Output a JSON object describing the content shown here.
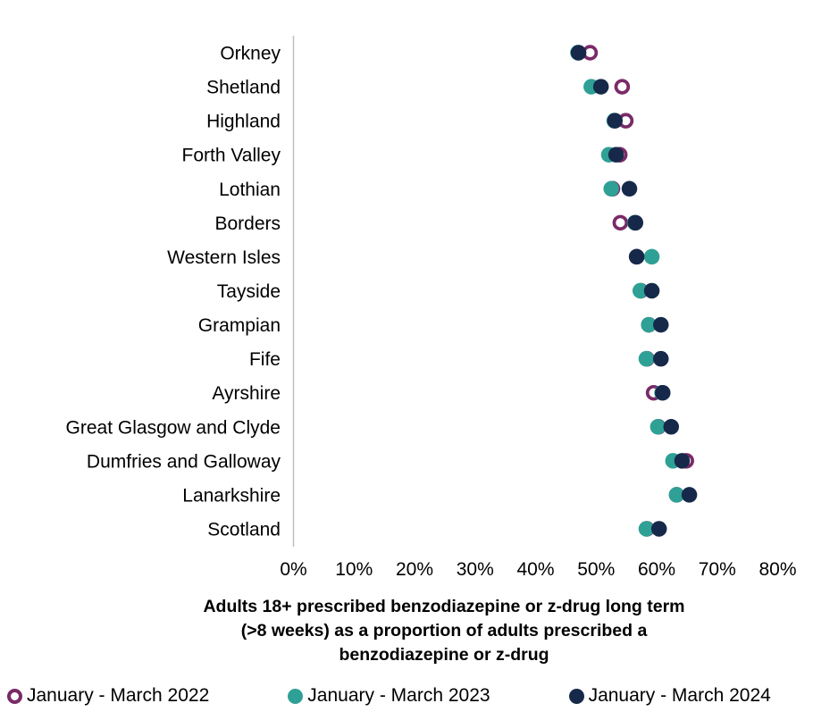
{
  "chart_data": {
    "type": "scatter",
    "subtype": "dot-plot",
    "orientation": "horizontal-categories",
    "title": "Adults 18+ prescribed benzodiazepine or z-drug long term (>8 weeks) as a proportion of adults prescribed a benzodiazepine or z-drug",
    "title_lines": [
      "Adults 18+ prescribed benzodiazepine or z-drug long term",
      "(>8 weeks) as a proportion of adults prescribed a",
      "benzodiazepine or z-drug"
    ],
    "categories": [
      "Orkney",
      "Shetland",
      "Highland",
      "Forth Valley",
      "Lothian",
      "Borders",
      "Western Isles",
      "Tayside",
      "Grampian",
      "Fife",
      "Ayrshire",
      "Great Glasgow and Clyde",
      "Dumfries and Galloway",
      "Lanarkshire",
      "Scotland"
    ],
    "x_ticks": [
      "0%",
      "10%",
      "20%",
      "30%",
      "40%",
      "50%",
      "60%",
      "70%",
      "80%"
    ],
    "xlim": [
      0,
      80
    ],
    "unit": "%",
    "grid": false,
    "legend_position": "bottom",
    "axis_line_color": "#bfbfbf",
    "text_color": "#000000",
    "series": [
      {
        "name": "January - March 2022",
        "marker": "open",
        "color": "#7a2a68",
        "values": [
          49.0,
          54.3,
          54.9,
          53.9,
          52.7,
          54.0,
          56.7,
          57.4,
          58.7,
          58.4,
          59.5,
          60.3,
          64.9,
          63.3,
          58.4
        ]
      },
      {
        "name": "January - March 2023",
        "marker": "filled",
        "color": "#2fa095",
        "values": [
          47.0,
          49.2,
          53.0,
          52.1,
          52.5,
          56.4,
          59.2,
          57.3,
          58.7,
          58.3,
          60.9,
          60.2,
          62.7,
          63.3,
          58.3
        ]
      },
      {
        "name": "January - March 2024",
        "marker": "filled",
        "color": "#16294a",
        "values": [
          47.1,
          50.8,
          53.1,
          53.3,
          55.5,
          56.5,
          56.7,
          59.2,
          60.7,
          60.7,
          61.0,
          62.4,
          64.2,
          65.4,
          60.4
        ]
      }
    ]
  }
}
